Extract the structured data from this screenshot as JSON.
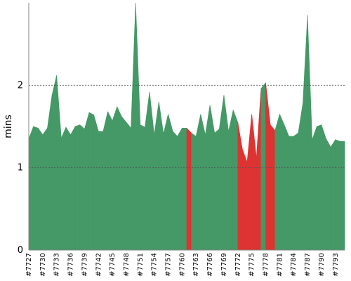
{
  "chart_data": {
    "type": "area",
    "title": "",
    "xlabel": "",
    "ylabel": "mins",
    "ylim": [
      0,
      3.0
    ],
    "y_ticks": [
      "0",
      "1",
      "2"
    ],
    "x_tick_labels": [
      "#7727",
      "#7730",
      "#7733",
      "#7736",
      "#7739",
      "#7742",
      "#7745",
      "#7748",
      "#7751",
      "#7754",
      "#7757",
      "#7760",
      "#7763",
      "#7766",
      "#7769",
      "#7772",
      "#7775",
      "#7778",
      "#7781",
      "#7784",
      "#7787",
      "#7790",
      "#7793"
    ],
    "x_start": 7727,
    "grid": "horizontal dashed at 1 and 2",
    "colors": {
      "success": "#449966",
      "failure": "#dd3333"
    },
    "points": [
      {
        "build": 7727,
        "value": 1.35,
        "status": "success"
      },
      {
        "build": 7728,
        "value": 1.5,
        "status": "success"
      },
      {
        "build": 7729,
        "value": 1.48,
        "status": "success"
      },
      {
        "build": 7730,
        "value": 1.4,
        "status": "success"
      },
      {
        "build": 7731,
        "value": 1.48,
        "status": "success"
      },
      {
        "build": 7732,
        "value": 1.88,
        "status": "success"
      },
      {
        "build": 7733,
        "value": 2.12,
        "status": "success"
      },
      {
        "build": 7734,
        "value": 1.36,
        "status": "success"
      },
      {
        "build": 7735,
        "value": 1.49,
        "status": "success"
      },
      {
        "build": 7736,
        "value": 1.4,
        "status": "success"
      },
      {
        "build": 7737,
        "value": 1.5,
        "status": "success"
      },
      {
        "build": 7738,
        "value": 1.52,
        "status": "success"
      },
      {
        "build": 7739,
        "value": 1.47,
        "status": "success"
      },
      {
        "build": 7740,
        "value": 1.67,
        "status": "success"
      },
      {
        "build": 7741,
        "value": 1.64,
        "status": "success"
      },
      {
        "build": 7742,
        "value": 1.44,
        "status": "success"
      },
      {
        "build": 7743,
        "value": 1.44,
        "status": "success"
      },
      {
        "build": 7744,
        "value": 1.68,
        "status": "success"
      },
      {
        "build": 7745,
        "value": 1.57,
        "status": "success"
      },
      {
        "build": 7746,
        "value": 1.74,
        "status": "success"
      },
      {
        "build": 7747,
        "value": 1.62,
        "status": "success"
      },
      {
        "build": 7748,
        "value": 1.55,
        "status": "success"
      },
      {
        "build": 7749,
        "value": 1.48,
        "status": "success"
      },
      {
        "build": 7750,
        "value": 3.0,
        "status": "success"
      },
      {
        "build": 7751,
        "value": 1.52,
        "status": "success"
      },
      {
        "build": 7752,
        "value": 1.49,
        "status": "success"
      },
      {
        "build": 7753,
        "value": 1.92,
        "status": "success"
      },
      {
        "build": 7754,
        "value": 1.4,
        "status": "success"
      },
      {
        "build": 7755,
        "value": 1.8,
        "status": "success"
      },
      {
        "build": 7756,
        "value": 1.41,
        "status": "success"
      },
      {
        "build": 7757,
        "value": 1.65,
        "status": "success"
      },
      {
        "build": 7758,
        "value": 1.44,
        "status": "success"
      },
      {
        "build": 7759,
        "value": 1.38,
        "status": "success"
      },
      {
        "build": 7760,
        "value": 1.48,
        "status": "success"
      },
      {
        "build": 7761,
        "value": 1.48,
        "status": "success"
      },
      {
        "build": 7762,
        "value": 1.42,
        "status": "failure"
      },
      {
        "build": 7763,
        "value": 1.38,
        "status": "success"
      },
      {
        "build": 7764,
        "value": 1.65,
        "status": "success"
      },
      {
        "build": 7765,
        "value": 1.4,
        "status": "success"
      },
      {
        "build": 7766,
        "value": 1.76,
        "status": "success"
      },
      {
        "build": 7767,
        "value": 1.42,
        "status": "success"
      },
      {
        "build": 7768,
        "value": 1.47,
        "status": "success"
      },
      {
        "build": 7769,
        "value": 1.88,
        "status": "success"
      },
      {
        "build": 7770,
        "value": 1.44,
        "status": "success"
      },
      {
        "build": 7771,
        "value": 1.7,
        "status": "success"
      },
      {
        "build": 7772,
        "value": 1.55,
        "status": "success"
      },
      {
        "build": 7773,
        "value": 1.22,
        "status": "failure"
      },
      {
        "build": 7774,
        "value": 1.07,
        "status": "failure"
      },
      {
        "build": 7775,
        "value": 1.65,
        "status": "failure"
      },
      {
        "build": 7776,
        "value": 1.12,
        "status": "failure"
      },
      {
        "build": 7777,
        "value": 1.96,
        "status": "failure"
      },
      {
        "build": 7778,
        "value": 2.03,
        "status": "success"
      },
      {
        "build": 7779,
        "value": 1.52,
        "status": "failure"
      },
      {
        "build": 7780,
        "value": 1.45,
        "status": "failure"
      },
      {
        "build": 7781,
        "value": 1.65,
        "status": "success"
      },
      {
        "build": 7782,
        "value": 1.52,
        "status": "success"
      },
      {
        "build": 7783,
        "value": 1.38,
        "status": "success"
      },
      {
        "build": 7784,
        "value": 1.38,
        "status": "success"
      },
      {
        "build": 7785,
        "value": 1.42,
        "status": "success"
      },
      {
        "build": 7786,
        "value": 1.78,
        "status": "success"
      },
      {
        "build": 7787,
        "value": 2.85,
        "status": "success"
      },
      {
        "build": 7788,
        "value": 1.34,
        "status": "success"
      },
      {
        "build": 7789,
        "value": 1.5,
        "status": "success"
      },
      {
        "build": 7790,
        "value": 1.52,
        "status": "success"
      },
      {
        "build": 7791,
        "value": 1.35,
        "status": "success"
      },
      {
        "build": 7792,
        "value": 1.25,
        "status": "success"
      },
      {
        "build": 7793,
        "value": 1.34,
        "status": "success"
      },
      {
        "build": 7794,
        "value": 1.32,
        "status": "success"
      },
      {
        "build": 7795,
        "value": 1.32,
        "status": "success"
      }
    ]
  }
}
